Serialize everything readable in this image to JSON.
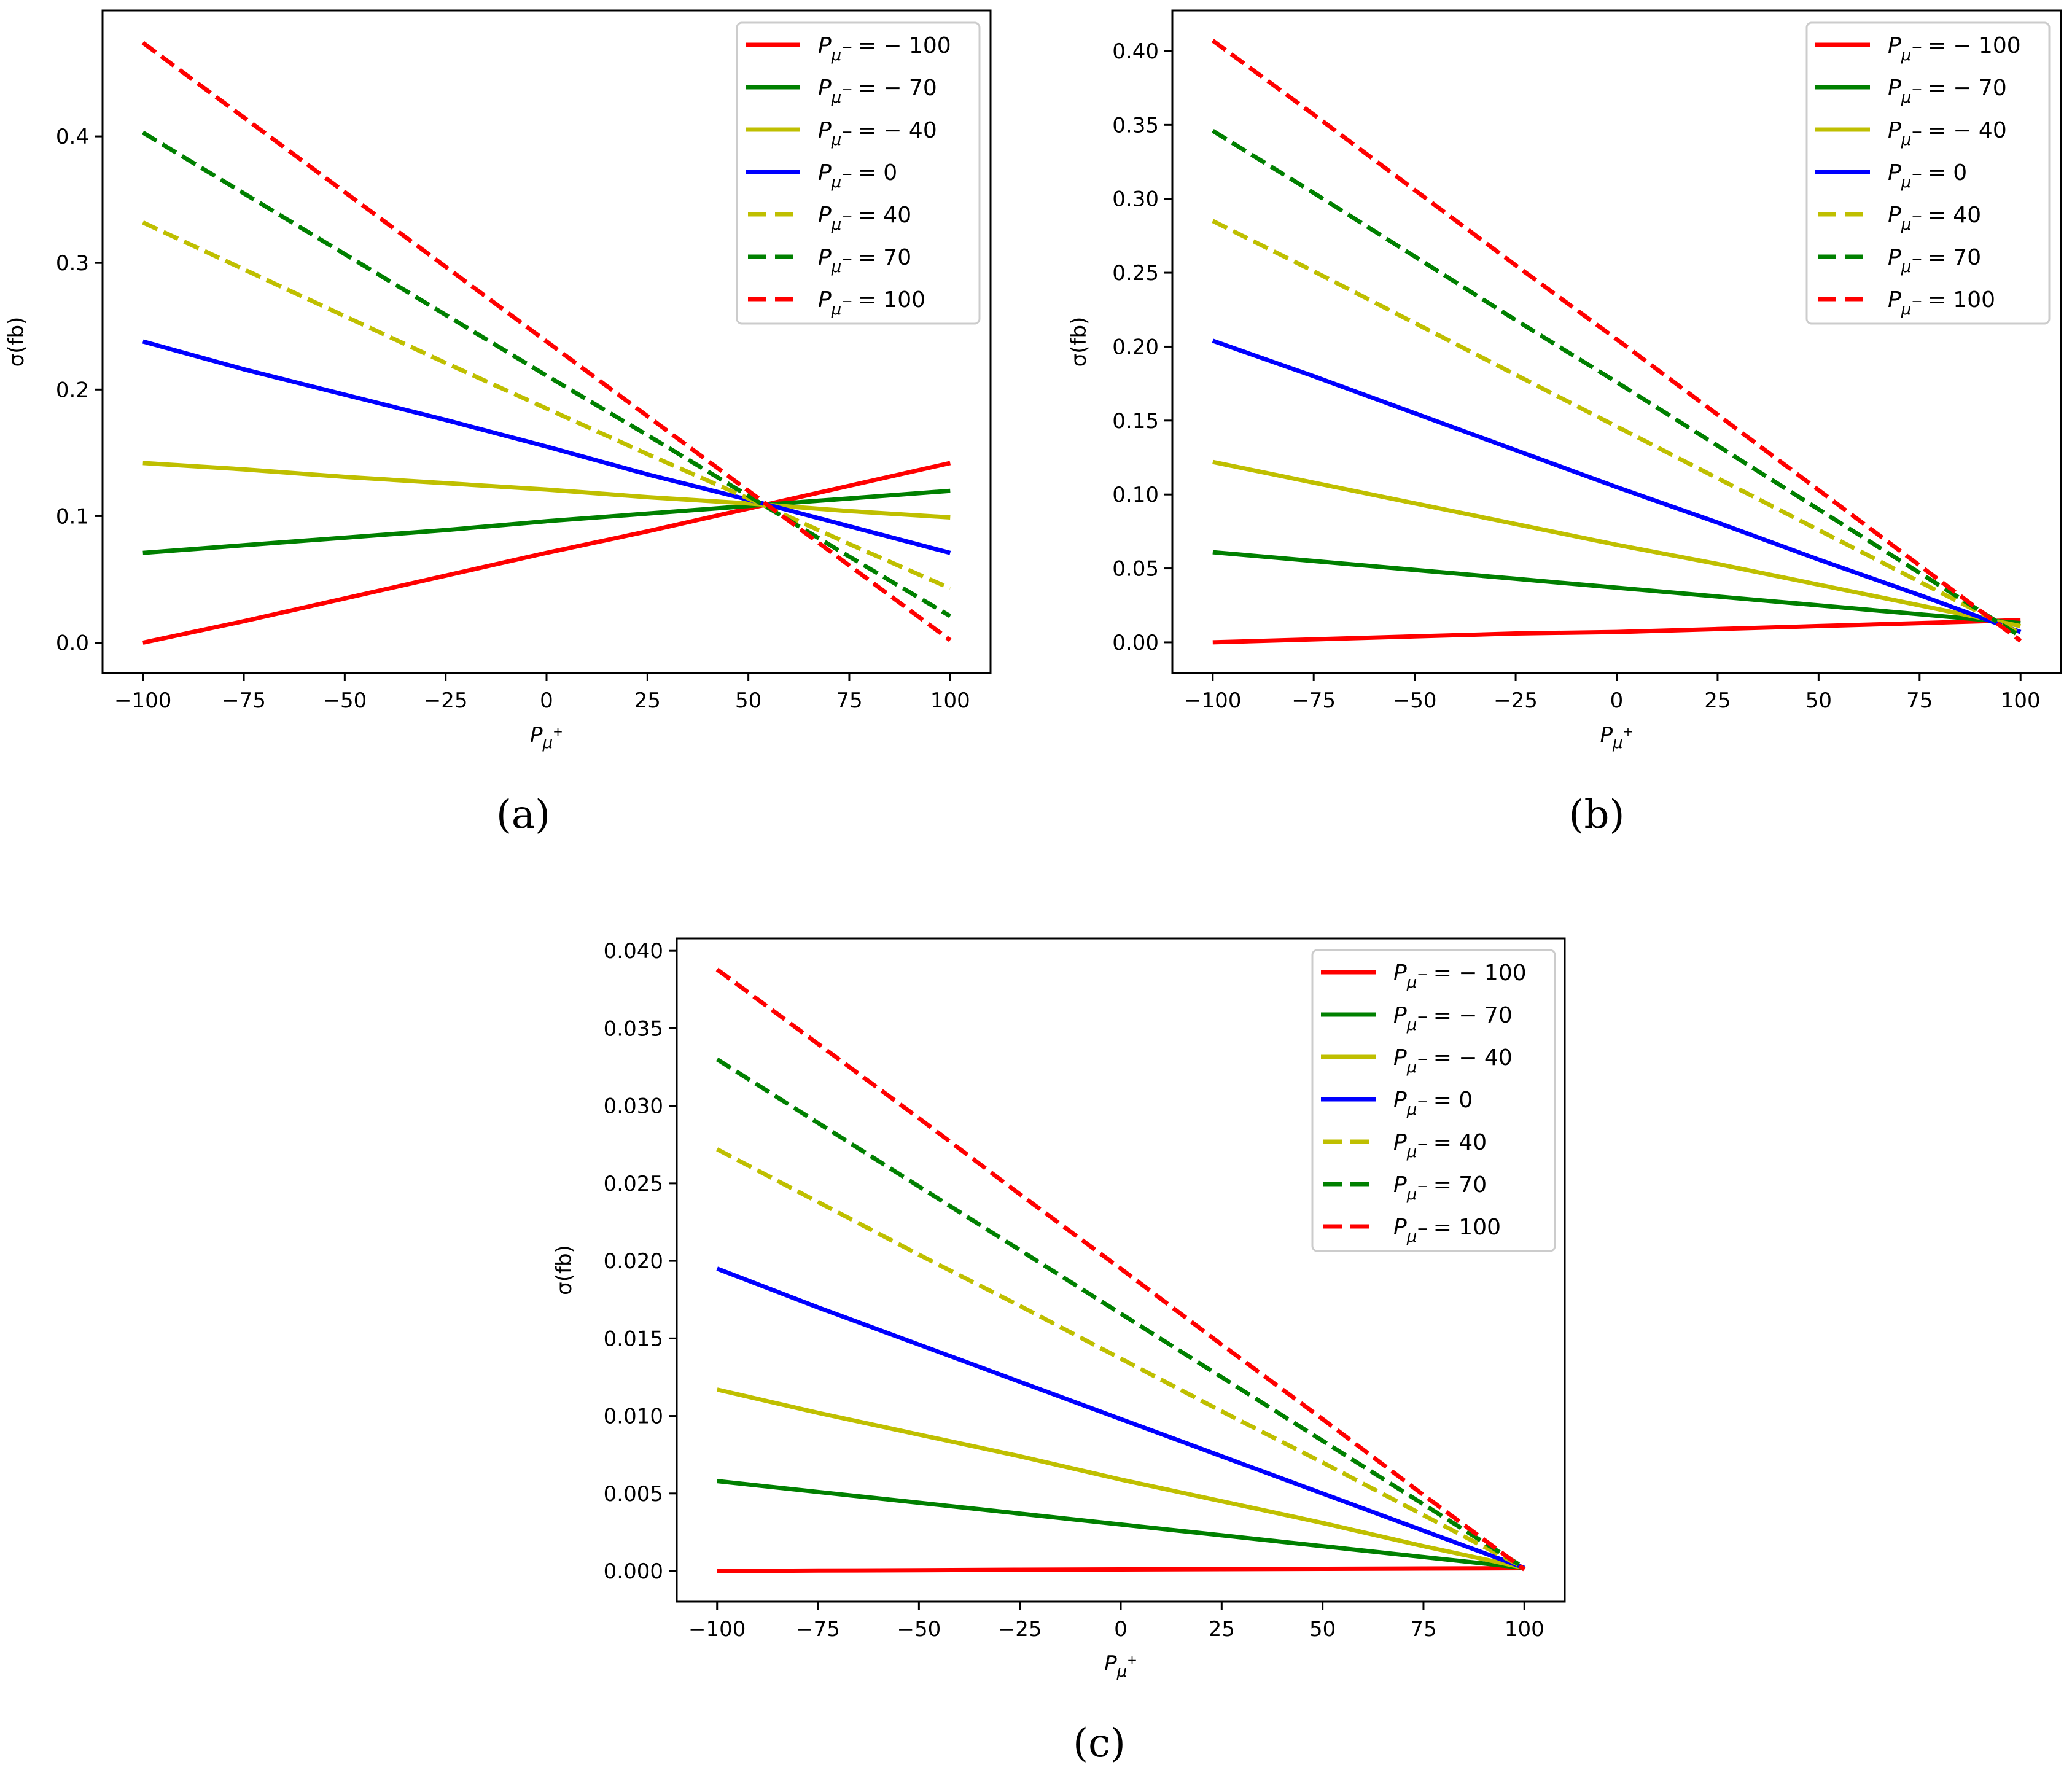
{
  "chart_data": [
    {
      "id": "a",
      "type": "line",
      "caption": "(a)",
      "xlabel": "P_{μ+}",
      "ylabel": "σ(fb)",
      "xlim": [
        -110,
        110
      ],
      "ylim": [
        -0.024,
        0.4995
      ],
      "xticks": [
        -100,
        -75,
        -50,
        -25,
        0,
        25,
        50,
        75,
        100
      ],
      "xtick_labels": [
        "−100",
        "−75",
        "−50",
        "−25",
        "0",
        "25",
        "50",
        "75",
        "100"
      ],
      "yticks": [
        0.0,
        0.1,
        0.2,
        0.3,
        0.4
      ],
      "ytick_labels": [
        "0.0",
        "0.1",
        "0.2",
        "0.3",
        "0.4"
      ],
      "grid": false,
      "legend_position": "top-right",
      "x": [
        -100,
        -75,
        -50,
        -25,
        0,
        25,
        50,
        75,
        100
      ],
      "series": [
        {
          "name": "P_{μ−} = −100",
          "legend_value": "= − 100",
          "color": "#ff0000",
          "style": "solid",
          "values": [
            0.0,
            0.017,
            0.035,
            0.053,
            0.071,
            0.088,
            0.106,
            0.124,
            0.142
          ]
        },
        {
          "name": "P_{μ−} = −70",
          "legend_value": "= − 70",
          "color": "#008000",
          "style": "solid",
          "values": [
            0.071,
            0.077,
            0.083,
            0.089,
            0.096,
            0.102,
            0.108,
            0.114,
            0.12
          ]
        },
        {
          "name": "P_{μ−} = −40",
          "legend_value": "= − 40",
          "color": "#bfbf00",
          "style": "solid",
          "values": [
            0.142,
            0.137,
            0.131,
            0.126,
            0.121,
            0.115,
            0.11,
            0.104,
            0.099
          ]
        },
        {
          "name": "P_{μ−} = 0",
          "legend_value": "= 0",
          "color": "#0000ff",
          "style": "solid",
          "values": [
            0.238,
            0.216,
            0.196,
            0.176,
            0.155,
            0.133,
            0.113,
            0.092,
            0.071
          ]
        },
        {
          "name": "P_{μ−} = 40",
          "legend_value": "= 40",
          "color": "#bfbf00",
          "style": "dashed",
          "values": [
            0.332,
            0.295,
            0.258,
            0.221,
            0.185,
            0.149,
            0.114,
            0.078,
            0.043
          ]
        },
        {
          "name": "P_{μ−} = 70",
          "legend_value": "= 70",
          "color": "#008000",
          "style": "dashed",
          "values": [
            0.403,
            0.355,
            0.307,
            0.259,
            0.211,
            0.164,
            0.116,
            0.068,
            0.021
          ]
        },
        {
          "name": "P_{μ−} = 100",
          "legend_value": "= 100",
          "color": "#ff0000",
          "style": "dashed",
          "values": [
            0.474,
            0.415,
            0.356,
            0.297,
            0.238,
            0.179,
            0.12,
            0.061,
            0.002
          ]
        }
      ]
    },
    {
      "id": "b",
      "type": "line",
      "caption": "(b)",
      "xlabel": "P_{μ+}",
      "ylabel": "σ(fb)",
      "xlim": [
        -110,
        110
      ],
      "ylim": [
        -0.0208,
        0.4274
      ],
      "xticks": [
        -100,
        -75,
        -50,
        -25,
        0,
        25,
        50,
        75,
        100
      ],
      "xtick_labels": [
        "−100",
        "−75",
        "−50",
        "−25",
        "0",
        "25",
        "50",
        "75",
        "100"
      ],
      "yticks": [
        0.0,
        0.05,
        0.1,
        0.15,
        0.2,
        0.25,
        0.3,
        0.35,
        0.4
      ],
      "ytick_labels": [
        "0.00",
        "0.05",
        "0.10",
        "0.15",
        "0.20",
        "0.25",
        "0.30",
        "0.35",
        "0.40"
      ],
      "grid": false,
      "legend_position": "top-right",
      "x": [
        -100,
        -75,
        -50,
        -25,
        0,
        25,
        50,
        75,
        100
      ],
      "series": [
        {
          "name": "P_{μ−} = −100",
          "legend_value": "= − 100",
          "color": "#ff0000",
          "style": "solid",
          "values": [
            0.0,
            0.002,
            0.004,
            0.006,
            0.007,
            0.009,
            0.011,
            0.013,
            0.015
          ]
        },
        {
          "name": "P_{μ−} = −70",
          "legend_value": "= − 70",
          "color": "#008000",
          "style": "solid",
          "values": [
            0.061,
            0.055,
            0.049,
            0.043,
            0.037,
            0.031,
            0.025,
            0.019,
            0.013
          ]
        },
        {
          "name": "P_{μ−} = −40",
          "legend_value": "= − 40",
          "color": "#bfbf00",
          "style": "solid",
          "values": [
            0.122,
            0.108,
            0.094,
            0.08,
            0.066,
            0.053,
            0.039,
            0.025,
            0.011
          ]
        },
        {
          "name": "P_{μ−} = 0",
          "legend_value": "= 0",
          "color": "#0000ff",
          "style": "solid",
          "values": [
            0.204,
            0.18,
            0.155,
            0.13,
            0.105,
            0.081,
            0.056,
            0.032,
            0.007
          ]
        },
        {
          "name": "P_{μ−} = 40",
          "legend_value": "= 40",
          "color": "#bfbf00",
          "style": "dashed",
          "values": [
            0.285,
            0.251,
            0.216,
            0.181,
            0.146,
            0.111,
            0.076,
            0.041,
            0.006
          ]
        },
        {
          "name": "P_{μ−} = 70",
          "legend_value": "= 70",
          "color": "#008000",
          "style": "dashed",
          "values": [
            0.346,
            0.304,
            0.261,
            0.218,
            0.176,
            0.133,
            0.09,
            0.047,
            0.004
          ]
        },
        {
          "name": "P_{μ−} = 100",
          "legend_value": "= 100",
          "color": "#ff0000",
          "style": "dashed",
          "values": [
            0.407,
            0.357,
            0.306,
            0.255,
            0.205,
            0.154,
            0.103,
            0.052,
            0.001
          ]
        }
      ]
    },
    {
      "id": "c",
      "type": "line",
      "caption": "(c)",
      "xlabel": "P_{μ+}",
      "ylabel": "σ(fb)",
      "xlim": [
        -110,
        110
      ],
      "ylim": [
        -0.00198,
        0.0408
      ],
      "xticks": [
        -100,
        -75,
        -50,
        -25,
        0,
        25,
        50,
        75,
        100
      ],
      "xtick_labels": [
        "−100",
        "−75",
        "−50",
        "−25",
        "0",
        "25",
        "50",
        "75",
        "100"
      ],
      "yticks": [
        0.0,
        0.005,
        0.01,
        0.015,
        0.02,
        0.025,
        0.03,
        0.035,
        0.04
      ],
      "ytick_labels": [
        "0.000",
        "0.005",
        "0.010",
        "0.015",
        "0.020",
        "0.025",
        "0.030",
        "0.035",
        "0.040"
      ],
      "grid": false,
      "legend_position": "top-right",
      "x": [
        -100,
        -75,
        -50,
        -25,
        0,
        25,
        50,
        75,
        100
      ],
      "series": [
        {
          "name": "P_{μ−} = −100",
          "legend_value": "= − 100",
          "color": "#ff0000",
          "style": "solid",
          "values": [
            0.0,
            3e-05,
            5e-05,
            8e-05,
            0.0001,
            0.00012,
            0.00014,
            0.00016,
            0.00018
          ]
        },
        {
          "name": "P_{μ−} = −70",
          "legend_value": "= − 70",
          "color": "#008000",
          "style": "solid",
          "values": [
            0.0058,
            0.0051,
            0.0044,
            0.0037,
            0.003,
            0.0023,
            0.0016,
            0.0009,
            0.0002
          ]
        },
        {
          "name": "P_{μ−} = −40",
          "legend_value": "= − 40",
          "color": "#bfbf00",
          "style": "solid",
          "values": [
            0.0117,
            0.0102,
            0.0088,
            0.0074,
            0.0059,
            0.0045,
            0.0031,
            0.0016,
            0.0002
          ]
        },
        {
          "name": "P_{μ−} = 0",
          "legend_value": "= 0",
          "color": "#0000ff",
          "style": "solid",
          "values": [
            0.0195,
            0.017,
            0.0146,
            0.0122,
            0.0098,
            0.0074,
            0.005,
            0.0026,
            0.0002
          ]
        },
        {
          "name": "P_{μ−} = 40",
          "legend_value": "= 40",
          "color": "#bfbf00",
          "style": "dashed",
          "values": [
            0.0272,
            0.0238,
            0.0204,
            0.0171,
            0.0137,
            0.0103,
            0.007,
            0.0036,
            0.0002
          ]
        },
        {
          "name": "P_{μ−} = 70",
          "legend_value": "= 70",
          "color": "#008000",
          "style": "dashed",
          "values": [
            0.033,
            0.0289,
            0.0248,
            0.0207,
            0.0166,
            0.0125,
            0.0084,
            0.0043,
            0.0002
          ]
        },
        {
          "name": "P_{μ−} = 100",
          "legend_value": "= 100",
          "color": "#ff0000",
          "style": "dashed",
          "values": [
            0.0388,
            0.034,
            0.0292,
            0.0243,
            0.0195,
            0.0146,
            0.0098,
            0.0049,
            0.0001
          ]
        }
      ]
    }
  ],
  "legend_symbol": "P",
  "legend_subscript": "μ",
  "legend_superscript": "−",
  "xlabel_symbol": "P",
  "xlabel_subscript": "μ",
  "xlabel_superscript": "+"
}
